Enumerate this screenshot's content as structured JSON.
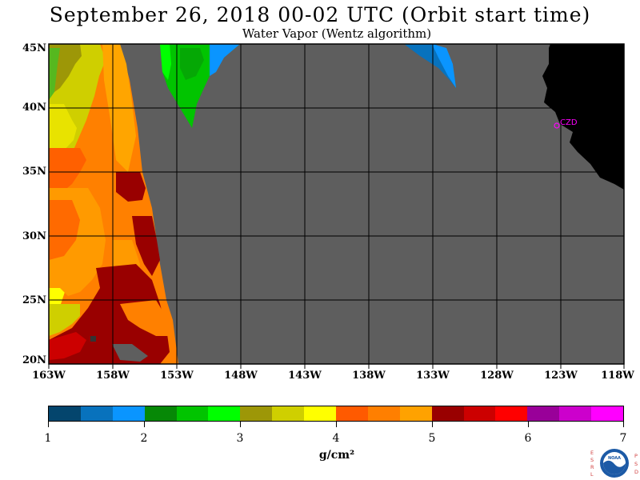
{
  "header": {
    "title": "September 26, 2018  00-02 UTC  (Orbit start time)",
    "subtitle": "Water Vapor (Wentz algorithm)"
  },
  "map": {
    "lat_labels": [
      "45N",
      "40N",
      "35N",
      "30N",
      "25N",
      "20N"
    ],
    "lon_labels": [
      "163W",
      "158W",
      "153W",
      "148W",
      "143W",
      "138W",
      "133W",
      "128W",
      "123W",
      "118W"
    ],
    "station_label": "CZD",
    "colors": {
      "no_data": "#5e5e5e",
      "land": "#000000",
      "grid": "#000000",
      "station": "#ff00ff"
    }
  },
  "legend": {
    "colors": [
      "#04456d",
      "#0872bd",
      "#0a95ff",
      "#068806",
      "#01c400",
      "#00ff00",
      "#9d9707",
      "#cfcf00",
      "#ffff00",
      "#ff5a00",
      "#ff7f00",
      "#ffa200",
      "#990000",
      "#cc0000",
      "#ff0000",
      "#990099",
      "#cc00cc",
      "#ff00ff"
    ],
    "tick_labels": [
      "1",
      "2",
      "3",
      "4",
      "5",
      "6",
      "7"
    ],
    "units": "g/cm²"
  },
  "logo": {
    "left_letters": "ESRL",
    "right_letters": "PSD",
    "emblem_text": "NOAA"
  }
}
